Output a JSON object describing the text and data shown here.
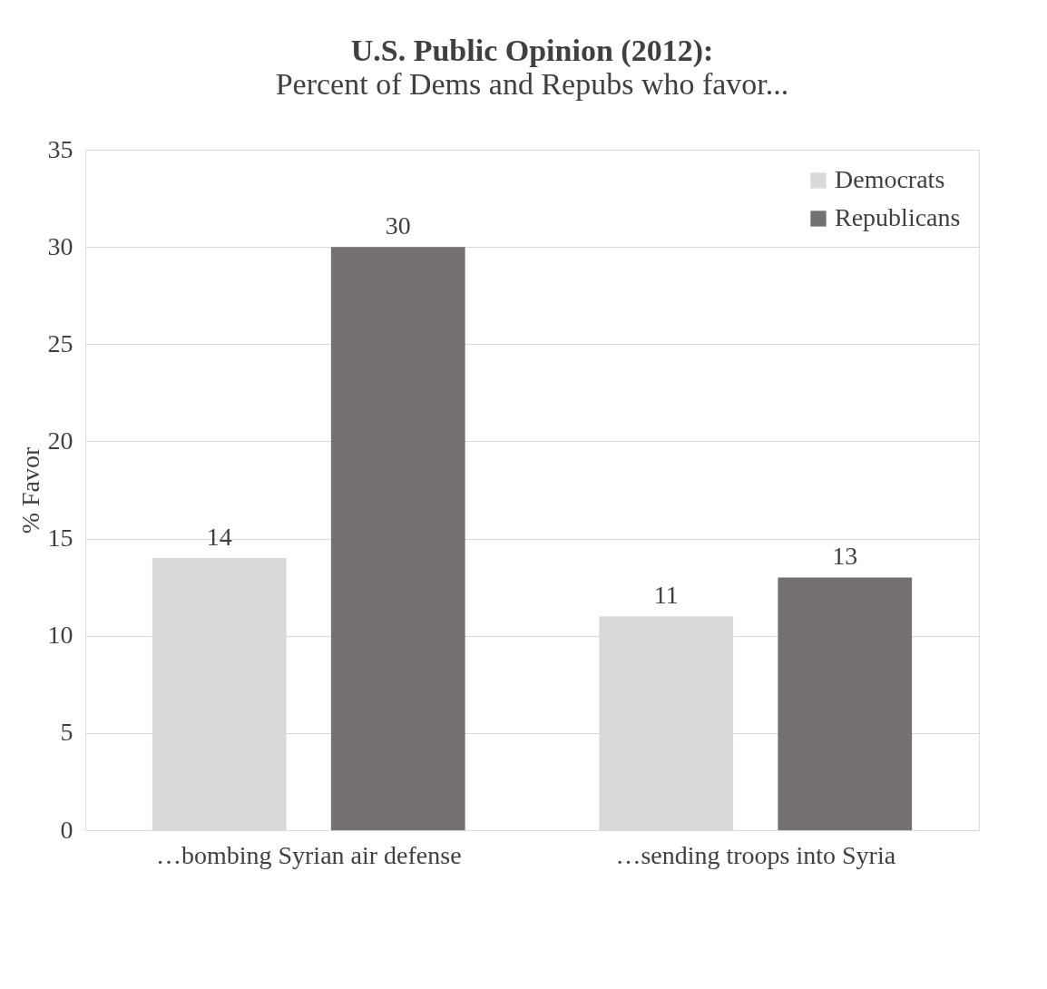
{
  "chart_data": {
    "type": "bar",
    "title": "U.S. Public Opinion (2012):",
    "subtitle": "Percent of Dems and Repubs who favor...",
    "ylabel": "% Favor",
    "categories": [
      "…bombing Syrian air defense",
      "…sending troops into Syria"
    ],
    "series": [
      {
        "name": "Democrats",
        "color": "#d9d9d9",
        "values": [
          14,
          11
        ]
      },
      {
        "name": "Republicans",
        "color": "#767171",
        "values": [
          30,
          13
        ]
      }
    ],
    "ylim": [
      0,
      35
    ],
    "yticks": [
      0,
      5,
      10,
      15,
      20,
      25,
      30,
      35
    ],
    "grid": "y",
    "legend": "top right",
    "data_labels": true
  }
}
